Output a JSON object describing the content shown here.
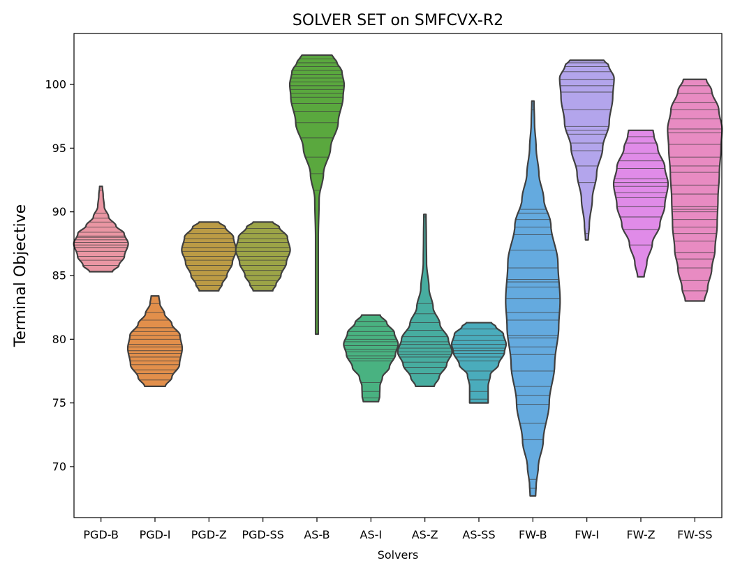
{
  "chart_data": {
    "type": "violin",
    "title": "SOLVER SET on SMFCVX-R2",
    "xlabel": "Solvers",
    "ylabel": "Terminal Objective",
    "ylim": [
      66,
      104
    ],
    "yticks": [
      70,
      75,
      80,
      85,
      90,
      95,
      100
    ],
    "categories": [
      "PGD-B",
      "PGD-I",
      "PGD-Z",
      "PGD-SS",
      "AS-B",
      "AS-I",
      "AS-Z",
      "AS-SS",
      "FW-B",
      "FW-I",
      "FW-Z",
      "FW-SS"
    ],
    "colors": [
      "#ea96a3",
      "#e28f4b",
      "#bb9b45",
      "#9ca447",
      "#5aa83e",
      "#49b281",
      "#47ada0",
      "#4aacbc",
      "#64aadf",
      "#b3a5ec",
      "#e08be8",
      "#e88bc2"
    ],
    "series": [
      {
        "profile": [
          [
            85.3,
            0.42
          ],
          [
            85.8,
            0.66
          ],
          [
            86.5,
            0.86
          ],
          [
            87.5,
            1.0
          ],
          [
            88.3,
            0.85
          ],
          [
            88.9,
            0.55
          ],
          [
            89.6,
            0.28
          ],
          [
            90.4,
            0.12
          ],
          [
            91.3,
            0.08
          ],
          [
            92.0,
            0.05
          ]
        ],
        "values": [
          85.8,
          86.2,
          86.5,
          86.9,
          87.2,
          87.4,
          87.6,
          87.8,
          88.0,
          88.1,
          88.4,
          88.8,
          89.2,
          89.5,
          89.9,
          91.7
        ]
      },
      {
        "profile": [
          [
            76.3,
            0.38
          ],
          [
            77.0,
            0.62
          ],
          [
            78.0,
            0.9
          ],
          [
            79.3,
            1.0
          ],
          [
            80.3,
            0.92
          ],
          [
            81.2,
            0.62
          ],
          [
            82.0,
            0.35
          ],
          [
            82.8,
            0.18
          ],
          [
            83.4,
            0.14
          ]
        ],
        "values": [
          76.8,
          77.3,
          77.6,
          78.0,
          78.3,
          78.6,
          78.9,
          79.1,
          79.4,
          79.6,
          80.0,
          80.3,
          80.6,
          80.9,
          81.5,
          82.1,
          82.8
        ]
      },
      {
        "profile": [
          [
            83.8,
            0.36
          ],
          [
            84.3,
            0.48
          ],
          [
            85.0,
            0.66
          ],
          [
            86.0,
            0.86
          ],
          [
            87.0,
            1.0
          ],
          [
            88.0,
            0.9
          ],
          [
            88.8,
            0.6
          ],
          [
            89.2,
            0.36
          ]
        ],
        "values": [
          84.2,
          84.6,
          85.0,
          85.4,
          85.8,
          86.2,
          86.5,
          86.9,
          87.2,
          87.6,
          87.9,
          88.3,
          88.7
        ]
      },
      {
        "profile": [
          [
            83.8,
            0.36
          ],
          [
            84.3,
            0.48
          ],
          [
            85.0,
            0.66
          ],
          [
            86.0,
            0.86
          ],
          [
            87.0,
            1.0
          ],
          [
            88.0,
            0.9
          ],
          [
            88.8,
            0.6
          ],
          [
            89.2,
            0.36
          ]
        ],
        "values": [
          84.2,
          84.6,
          85.0,
          85.4,
          85.8,
          86.2,
          86.5,
          86.9,
          87.2,
          87.6,
          87.9,
          88.3,
          88.7
        ]
      },
      {
        "profile": [
          [
            80.4,
            0.05
          ],
          [
            84.0,
            0.05
          ],
          [
            88.0,
            0.05
          ],
          [
            91.0,
            0.08
          ],
          [
            93.0,
            0.24
          ],
          [
            95.0,
            0.5
          ],
          [
            97.0,
            0.78
          ],
          [
            99.0,
            0.96
          ],
          [
            100.0,
            1.0
          ],
          [
            101.0,
            0.92
          ],
          [
            101.8,
            0.72
          ],
          [
            102.3,
            0.55
          ]
        ],
        "values": [
          91.7,
          93.0,
          94.3,
          95.8,
          97.0,
          97.9,
          98.5,
          99.0,
          99.3,
          99.6,
          99.9,
          100.2,
          100.5,
          100.8,
          101.1,
          101.4,
          101.7,
          102.0
        ]
      },
      {
        "profile": [
          [
            75.1,
            0.28
          ],
          [
            75.5,
            0.32
          ],
          [
            76.3,
            0.33
          ],
          [
            77.0,
            0.42
          ],
          [
            77.8,
            0.68
          ],
          [
            78.8,
            0.9
          ],
          [
            79.6,
            1.0
          ],
          [
            80.5,
            0.86
          ],
          [
            81.3,
            0.58
          ],
          [
            81.9,
            0.34
          ]
        ],
        "values": [
          75.4,
          75.9,
          76.6,
          78.3,
          78.5,
          78.7,
          79.0,
          79.2,
          79.5,
          79.8,
          80.0,
          80.3,
          80.6,
          81.0,
          81.4
        ]
      },
      {
        "profile": [
          [
            76.3,
            0.34
          ],
          [
            77.0,
            0.52
          ],
          [
            78.0,
            0.8
          ],
          [
            79.0,
            1.0
          ],
          [
            80.0,
            0.86
          ],
          [
            81.2,
            0.55
          ],
          [
            82.5,
            0.3
          ],
          [
            84.0,
            0.15
          ],
          [
            86.0,
            0.06
          ],
          [
            88.0,
            0.05
          ],
          [
            89.8,
            0.04
          ]
        ],
        "values": [
          77.3,
          77.8,
          78.2,
          78.6,
          78.8,
          79.0,
          79.3,
          79.6,
          79.8,
          80.2,
          80.7,
          81.3,
          82.0,
          82.8,
          89.6
        ]
      },
      {
        "profile": [
          [
            75.0,
            0.34
          ],
          [
            75.5,
            0.34
          ],
          [
            76.3,
            0.34
          ],
          [
            77.2,
            0.42
          ],
          [
            78.0,
            0.72
          ],
          [
            79.0,
            0.94
          ],
          [
            79.6,
            1.0
          ],
          [
            80.4,
            0.9
          ],
          [
            81.0,
            0.62
          ],
          [
            81.3,
            0.46
          ]
        ],
        "values": [
          75.3,
          75.9,
          76.8,
          77.5,
          78.3,
          78.6,
          78.9,
          79.1,
          79.3,
          79.6,
          79.9,
          80.3,
          80.8
        ]
      },
      {
        "profile": [
          [
            67.7,
            0.1
          ],
          [
            68.5,
            0.12
          ],
          [
            70.0,
            0.2
          ],
          [
            72.0,
            0.38
          ],
          [
            75.0,
            0.6
          ],
          [
            78.0,
            0.8
          ],
          [
            81.0,
            0.95
          ],
          [
            83.0,
            1.0
          ],
          [
            86.0,
            0.92
          ],
          [
            89.0,
            0.66
          ],
          [
            91.0,
            0.4
          ],
          [
            93.0,
            0.22
          ],
          [
            95.0,
            0.12
          ],
          [
            97.0,
            0.06
          ],
          [
            98.7,
            0.04
          ]
        ],
        "values": [
          68.3,
          69.0,
          72.1,
          73.4,
          74.9,
          75.6,
          76.3,
          77.5,
          78.8,
          79.4,
          80.1,
          80.3,
          81.5,
          82.1,
          83.2,
          84.1,
          84.5,
          84.7,
          85.6,
          87.0,
          88.2,
          88.8,
          89.4,
          89.9,
          90.2,
          98.0
        ]
      },
      {
        "profile": [
          [
            87.8,
            0.05
          ],
          [
            89.0,
            0.09
          ],
          [
            91.0,
            0.2
          ],
          [
            93.0,
            0.36
          ],
          [
            95.0,
            0.58
          ],
          [
            97.0,
            0.82
          ],
          [
            99.0,
            0.95
          ],
          [
            100.5,
            1.0
          ],
          [
            101.5,
            0.8
          ],
          [
            101.9,
            0.62
          ]
        ],
        "values": [
          88.3,
          92.3,
          93.6,
          94.8,
          95.4,
          96.1,
          96.4,
          96.7,
          98.0,
          99.4,
          99.9,
          100.4,
          101.0,
          101.4,
          101.7
        ]
      },
      {
        "profile": [
          [
            84.9,
            0.12
          ],
          [
            86.0,
            0.22
          ],
          [
            87.5,
            0.42
          ],
          [
            89.0,
            0.7
          ],
          [
            90.5,
            0.88
          ],
          [
            92.2,
            1.0
          ],
          [
            93.5,
            0.88
          ],
          [
            95.0,
            0.62
          ],
          [
            96.0,
            0.48
          ],
          [
            96.4,
            0.45
          ]
        ],
        "values": [
          87.4,
          88.6,
          89.6,
          90.4,
          91.1,
          91.5,
          92.0,
          92.3,
          92.6,
          93.4,
          94.0,
          94.6,
          95.4,
          95.9
        ]
      },
      {
        "profile": [
          [
            83.0,
            0.35
          ],
          [
            84.0,
            0.47
          ],
          [
            85.5,
            0.62
          ],
          [
            87.0,
            0.74
          ],
          [
            89.0,
            0.82
          ],
          [
            91.0,
            0.85
          ],
          [
            93.0,
            0.9
          ],
          [
            95.0,
            0.96
          ],
          [
            96.5,
            1.0
          ],
          [
            98.0,
            0.88
          ],
          [
            99.5,
            0.62
          ],
          [
            100.4,
            0.42
          ]
        ],
        "values": [
          83.8,
          84.6,
          85.6,
          86.3,
          86.8,
          87.7,
          88.3,
          88.8,
          89.4,
          90.0,
          90.2,
          90.4,
          91.4,
          92.1,
          93.1,
          93.6,
          94.3,
          95.3,
          96.2,
          96.5,
          97.3,
          98.0,
          98.6,
          99.3,
          99.9
        ]
      }
    ]
  }
}
